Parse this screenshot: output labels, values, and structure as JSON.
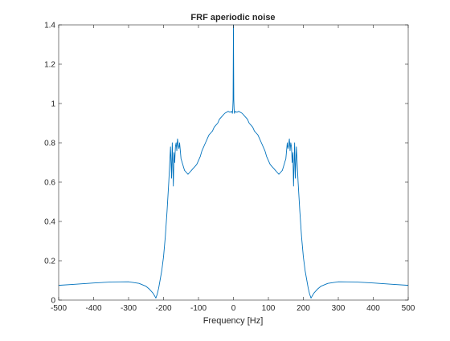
{
  "chart_data": {
    "type": "line",
    "title": "FRF aperiodic noise",
    "xlabel": "Frequency [Hz]",
    "ylabel": "",
    "xlim": [
      -500,
      500
    ],
    "ylim": [
      0,
      1.4
    ],
    "x_ticks": [
      "-500",
      "-400",
      "-300",
      "-200",
      "-100",
      "0",
      "100",
      "200",
      "300",
      "400",
      "500"
    ],
    "y_ticks": [
      "0",
      "0.2",
      "0.4",
      "0.6",
      "0.8",
      "1",
      "1.2",
      "1.4"
    ],
    "grid": false,
    "legend": "none",
    "series": [
      {
        "color": "#0072bd",
        "x": [
          -500,
          -450,
          -400,
          -350,
          -300,
          -270,
          -250,
          -240,
          -230,
          -225,
          -222,
          -218,
          -214,
          -210,
          -205,
          -200,
          -195,
          -190,
          -185,
          -180,
          -177,
          -175,
          -172,
          -170,
          -168,
          -166,
          -164,
          -162,
          -160,
          -158,
          -156,
          -154,
          -152,
          -150,
          -145,
          -140,
          -135,
          -130,
          -125,
          -120,
          -115,
          -110,
          -105,
          -100,
          -95,
          -90,
          -85,
          -80,
          -75,
          -70,
          -65,
          -60,
          -55,
          -50,
          -45,
          -40,
          -35,
          -30,
          -25,
          -20,
          -15,
          -10,
          -5,
          -3,
          -2,
          -1,
          0,
          1,
          2,
          3,
          5,
          10,
          15,
          20,
          25,
          30,
          35,
          40,
          45,
          50,
          55,
          60,
          65,
          70,
          75,
          80,
          85,
          90,
          95,
          100,
          105,
          110,
          115,
          120,
          125,
          130,
          135,
          140,
          145,
          150,
          152,
          154,
          156,
          158,
          160,
          162,
          164,
          166,
          168,
          170,
          172,
          175,
          177,
          180,
          185,
          190,
          195,
          200,
          205,
          210,
          214,
          218,
          222,
          225,
          230,
          240,
          250,
          270,
          300,
          350,
          400,
          450,
          500
        ],
        "y": [
          0.075,
          0.081,
          0.087,
          0.092,
          0.093,
          0.085,
          0.07,
          0.055,
          0.035,
          0.02,
          0.01,
          0.03,
          0.06,
          0.1,
          0.15,
          0.22,
          0.32,
          0.45,
          0.6,
          0.78,
          0.62,
          0.8,
          0.58,
          0.75,
          0.7,
          0.78,
          0.8,
          0.76,
          0.82,
          0.79,
          0.77,
          0.8,
          0.76,
          0.72,
          0.69,
          0.66,
          0.65,
          0.64,
          0.65,
          0.66,
          0.67,
          0.68,
          0.69,
          0.71,
          0.73,
          0.76,
          0.78,
          0.8,
          0.82,
          0.84,
          0.85,
          0.86,
          0.88,
          0.89,
          0.9,
          0.92,
          0.93,
          0.94,
          0.95,
          0.955,
          0.96,
          0.955,
          0.96,
          0.95,
          0.97,
          1.02,
          1.4,
          1.02,
          0.97,
          0.95,
          0.96,
          0.955,
          0.96,
          0.955,
          0.95,
          0.94,
          0.93,
          0.92,
          0.9,
          0.89,
          0.88,
          0.86,
          0.85,
          0.84,
          0.82,
          0.8,
          0.78,
          0.76,
          0.73,
          0.71,
          0.69,
          0.68,
          0.67,
          0.66,
          0.65,
          0.64,
          0.65,
          0.66,
          0.69,
          0.72,
          0.76,
          0.8,
          0.77,
          0.79,
          0.82,
          0.76,
          0.8,
          0.78,
          0.7,
          0.75,
          0.58,
          0.8,
          0.62,
          0.78,
          0.6,
          0.45,
          0.32,
          0.22,
          0.15,
          0.1,
          0.06,
          0.03,
          0.01,
          0.02,
          0.035,
          0.055,
          0.07,
          0.085,
          0.093,
          0.092,
          0.087,
          0.081,
          0.075
        ]
      }
    ]
  }
}
